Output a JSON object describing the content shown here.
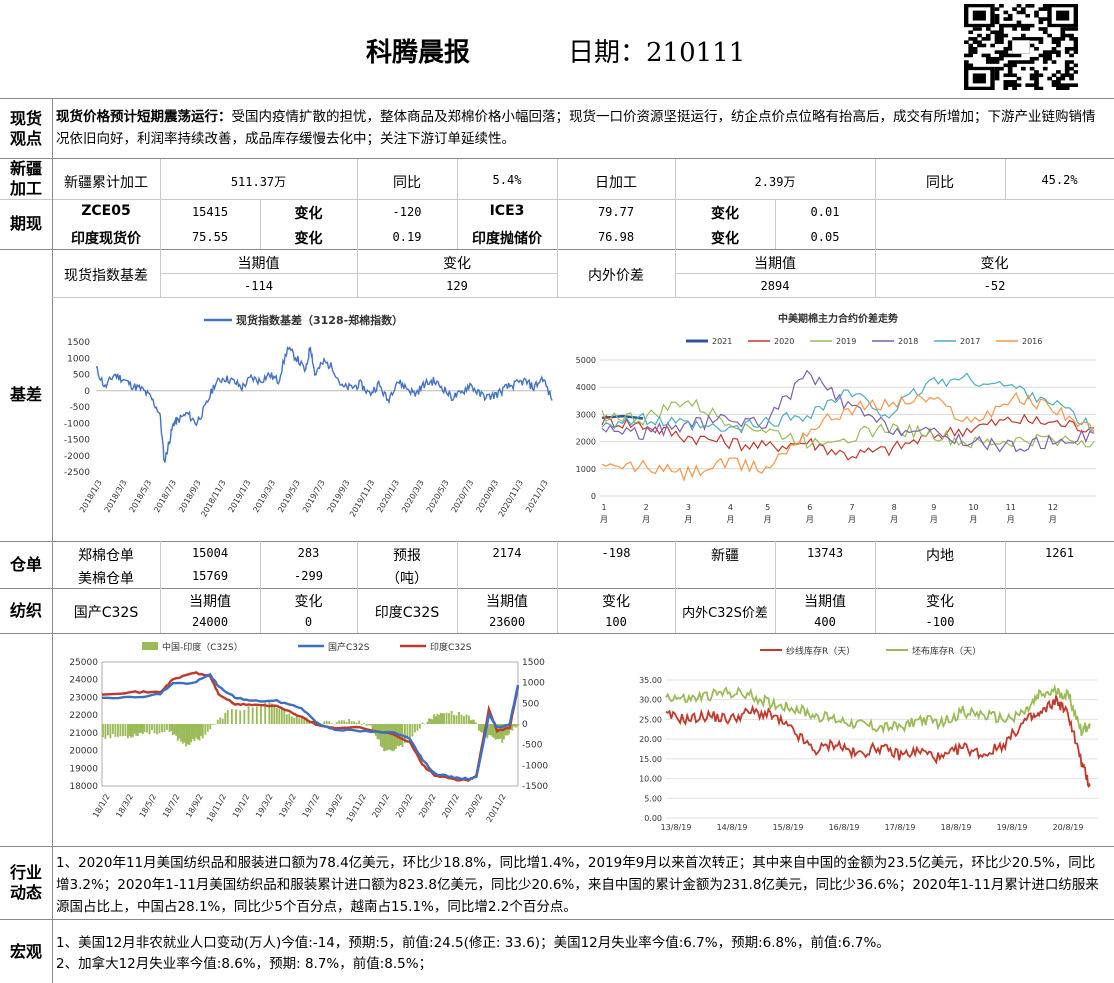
{
  "header": {
    "title": "科腾晨报",
    "date": "日期：210111"
  },
  "labels": {
    "spot": "现货观点",
    "xinjiang": "新疆加工",
    "futures": "期现",
    "basis": "基差",
    "warehouse": "仓单",
    "spinning": "纺织",
    "industry": "行业动态",
    "macro": "宏观"
  },
  "spot_view": {
    "lead": "现货价格预计短期震荡运行：",
    "body": "受国内疫情扩散的担忧，整体商品及郑棉价格小幅回落；现货一口价资源坚挺运行，纺企点价点位略有抬高后，成交有所增加；下游产业链购销情况依旧向好，利润率持续改善，成品库存缓慢去化中；关注下游订单延续性。"
  },
  "xinjiang": {
    "cum_label": "新疆累计加工",
    "cum_value": "511.37万",
    "yoy_label": "同比",
    "yoy_value": "5.4%",
    "daily_label": "日加工",
    "daily_value": "2.39万",
    "yoy2_label": "同比",
    "yoy2_value": "45.2%"
  },
  "futures": {
    "row1": {
      "k1": "ZCE05",
      "v1": "15415",
      "c1": "变化",
      "d1": "-120",
      "k2": "ICE3",
      "v2": "79.77",
      "c2": "变化",
      "d2": "0.01"
    },
    "row2": {
      "k1": "印度现货价",
      "v1": "75.55",
      "c1": "变化",
      "d1": "0.19",
      "k2": "印度抛储价",
      "v2": "76.98",
      "c2": "变化",
      "d2": "0.05"
    }
  },
  "basis": {
    "label1": "现货指数基差",
    "cur_label": "当期值",
    "chg_label": "变化",
    "cur1": "-114",
    "chg1": "129",
    "label2": "内外价差",
    "cur2": "2894",
    "chg2": "-52"
  },
  "warehouse": {
    "zc_label": "郑棉仓单",
    "zc_value": "15004",
    "zc_chg": "283",
    "us_label": "美棉仓单",
    "us_value": "15769",
    "us_chg": "-299",
    "fc_label": "预报",
    "fc_unit": "（吨）",
    "fc_value": "2174",
    "fc_chg": "-198",
    "xj_label": "新疆",
    "xj_value": "13743",
    "nd_label": "内地",
    "nd_value": "1261"
  },
  "spinning": {
    "cn_label": "国产C32S",
    "cur_label": "当期值",
    "chg_label": "变化",
    "cn_value": "24000",
    "cn_chg": "0",
    "in_label": "印度C32S",
    "in_value": "23600",
    "in_chg": "100",
    "diff_label": "内外C32S价差",
    "diff_value": "400",
    "diff_chg": "-100"
  },
  "industry_text": "1、2020年11月美国纺织品和服装进口额为78.4亿美元，环比少18.8%，同比增1.4%，2019年9月以来首次转正；其中来自中国的金额为23.5亿美元，环比少20.5%，同比增3.2%；2020年1-11月美国纺织品和服装累计进口额为823.8亿美元，同比少20.6%，来自中国的累计金额为231.8亿美元，同比少36.6%；2020年1-11月累计进口纺服来源国占比上，中国占28.1%，同比少5个百分点，越南占15.1%，同比增2.2个百分点。",
  "macro_lines": [
    "1、美国12月非农就业人口变动(万人)今值:-14，预期:5，前值:24.5(修正: 33.6)；美国12月失业率今值:6.7%，预期:6.8%，前值:6.7%。",
    "2、加拿大12月失业率今值:8.6%，预期: 8.7%，前值:8.5%；"
  ],
  "chart_data": [
    {
      "type": "line",
      "title": "",
      "legend": [
        "现货指数基差（3128-郑棉指数）"
      ],
      "ylim": [
        -2500,
        1500
      ],
      "yticks": [
        1500,
        1000,
        500,
        0,
        -500,
        -1000,
        -1500,
        -2000,
        -2500
      ],
      "xticks": [
        "2018/1/3",
        "2018/3/3",
        "2018/5/3",
        "2018/7/3",
        "2018/9/3",
        "2018/11/3",
        "2019/1/3",
        "2019/3/3",
        "2019/5/3",
        "2019/7/3",
        "2019/9/3",
        "2019/11/3",
        "2020/1/3",
        "2020/3/3",
        "2020/5/3",
        "2020/7/3",
        "2020/9/3",
        "2020/11/3",
        "2021/1/3"
      ],
      "series": [
        {
          "name": "现货指数基差（3128-郑棉指数）",
          "color": "#4472c4",
          "x": [
            0,
            0.02,
            0.04,
            0.06,
            0.08,
            0.1,
            0.12,
            0.14,
            0.15,
            0.16,
            0.17,
            0.18,
            0.2,
            0.22,
            0.24,
            0.26,
            0.28,
            0.3,
            0.32,
            0.34,
            0.36,
            0.38,
            0.4,
            0.42,
            0.44,
            0.46,
            0.47,
            0.48,
            0.5,
            0.52,
            0.54,
            0.56,
            0.58,
            0.6,
            0.62,
            0.64,
            0.66,
            0.68,
            0.7,
            0.72,
            0.74,
            0.76,
            0.78,
            0.8,
            0.82,
            0.84,
            0.86,
            0.88,
            0.9,
            0.92,
            0.94,
            0.96,
            0.98,
            1.0
          ],
          "y": [
            700,
            100,
            500,
            350,
            150,
            50,
            -200,
            -700,
            -2200,
            -1600,
            -1000,
            -900,
            -700,
            -1000,
            -500,
            200,
            400,
            300,
            100,
            400,
            300,
            500,
            300,
            1300,
            1000,
            600,
            1400,
            500,
            900,
            700,
            100,
            100,
            200,
            -100,
            200,
            -300,
            300,
            100,
            -100,
            200,
            300,
            100,
            -200,
            -100,
            200,
            -100,
            -200,
            -100,
            100,
            200,
            300,
            100,
            400,
            -300
          ]
        }
      ]
    },
    {
      "type": "line",
      "title": "中美期棉主力合约价差走势",
      "ylim": [
        0,
        5000
      ],
      "yticks": [
        5000,
        4000,
        3000,
        2000,
        1000,
        0
      ],
      "xticks": [
        "1月",
        "2月",
        "3月",
        "4月",
        "5月",
        "6月",
        "7月",
        "8月",
        "9月",
        "10月",
        "11月",
        "12月"
      ],
      "series": [
        {
          "name": "2021",
          "color": "#2e5597",
          "y": [
            2900,
            2850
          ]
        },
        {
          "name": "2020",
          "color": "#c0392b",
          "y": [
            2800,
            2600,
            2200,
            2000,
            1800,
            2000,
            1500,
            1700,
            2200,
            2500,
            2800,
            2700,
            2500
          ]
        },
        {
          "name": "2019",
          "color": "#9bbb59",
          "y": [
            3000,
            2800,
            3500,
            2800,
            2400,
            2000,
            2200,
            2500,
            2300,
            1900,
            2000,
            2100,
            2000
          ]
        },
        {
          "name": "2018",
          "color": "#7f5fae",
          "y": [
            2500,
            2300,
            2600,
            2800,
            2700,
            4500,
            3300,
            2500,
            2300,
            2000,
            1800,
            2000,
            2300
          ]
        },
        {
          "name": "2017",
          "color": "#4bacc6",
          "y": [
            2700,
            2800,
            2600,
            2400,
            2700,
            3000,
            3800,
            3000,
            4200,
            4300,
            4000,
            3500,
            2400
          ]
        },
        {
          "name": "2016",
          "color": "#f79646",
          "y": [
            1000,
            1100,
            800,
            1200,
            1000,
            2400,
            3200,
            3400,
            3600,
            2700,
            3600,
            3300,
            2300
          ]
        }
      ]
    },
    {
      "type": "line",
      "title": "",
      "legend": [
        "中国-印度（C32S）",
        "国产C32S",
        "印度C32S"
      ],
      "ylim": [
        18000,
        25000
      ],
      "y2lim": [
        -1500,
        1500
      ],
      "yticks": [
        25000,
        24000,
        23000,
        22000,
        21000,
        20000,
        19000,
        18000
      ],
      "y2ticks": [
        1500,
        1000,
        500,
        0,
        -500,
        -1000,
        -1500
      ],
      "xticks": [
        "18/1/2",
        "18/3/2",
        "18/5/2",
        "18/7/2",
        "18/9/2",
        "18/11/2",
        "19/1/2",
        "19/3/2",
        "19/5/2",
        "19/7/2",
        "19/9/2",
        "19/11/2",
        "20/1/2",
        "20/3/2",
        "20/5/2",
        "20/7/2",
        "20/9/2",
        "20/11/2"
      ],
      "series": [
        {
          "name": "国产C32S",
          "color": "#3a6fc4",
          "x": [
            0,
            0.08,
            0.14,
            0.17,
            0.22,
            0.26,
            0.28,
            0.32,
            0.36,
            0.42,
            0.48,
            0.52,
            0.56,
            0.62,
            0.7,
            0.74,
            0.77,
            0.8,
            0.84,
            0.88,
            0.9,
            0.93,
            0.95,
            0.98,
            1.0
          ],
          "y": [
            23000,
            23000,
            23200,
            23800,
            23800,
            24300,
            23600,
            23000,
            22800,
            22800,
            22400,
            21500,
            21200,
            21100,
            21000,
            20700,
            19500,
            18700,
            18500,
            18400,
            18500,
            22000,
            21300,
            21500,
            23700
          ]
        },
        {
          "name": "印度C32S",
          "color": "#c0392b",
          "x": [
            0,
            0.08,
            0.14,
            0.17,
            0.22,
            0.26,
            0.28,
            0.32,
            0.36,
            0.42,
            0.48,
            0.52,
            0.56,
            0.62,
            0.7,
            0.74,
            0.77,
            0.8,
            0.84,
            0.88,
            0.9,
            0.93,
            0.95,
            0.98,
            1.0
          ],
          "y": [
            23200,
            23300,
            23300,
            24000,
            24400,
            24200,
            23200,
            22600,
            22600,
            22500,
            21900,
            21400,
            21300,
            21300,
            20900,
            20500,
            19200,
            18600,
            18400,
            18300,
            18600,
            22300,
            21100,
            21300,
            23600
          ]
        },
        {
          "name": "中国-印度（C32S）",
          "color": "#9bbb59",
          "x": [
            0,
            0.06,
            0.1,
            0.16,
            0.2,
            0.24,
            0.3,
            0.4,
            0.46,
            0.52,
            0.58,
            0.64,
            0.68,
            0.72,
            0.78,
            0.82,
            0.88,
            0.92,
            0.96,
            1.0
          ],
          "y": [
            -300,
            -300,
            -200,
            -200,
            -500,
            -300,
            300,
            500,
            200,
            0,
            100,
            0,
            -700,
            -500,
            100,
            300,
            200,
            -300,
            -400,
            0
          ]
        }
      ]
    },
    {
      "type": "line",
      "title": "",
      "legend": [
        "纱线库存R（天）",
        "坯布库存R（天）"
      ],
      "ylim": [
        0,
        35
      ],
      "yticks": [
        "35.00",
        "30.00",
        "25.00",
        "20.00",
        "15.00",
        "10.00",
        "5.00",
        "0.00"
      ],
      "xticks": [
        "13/8/19",
        "14/8/19",
        "15/8/19",
        "16/8/19",
        "17/8/19",
        "18/8/19",
        "19/8/19",
        "20/8/19"
      ],
      "series": [
        {
          "name": "纱线库存R（天）",
          "color": "#c0392b",
          "x": [
            0,
            0.05,
            0.1,
            0.15,
            0.2,
            0.25,
            0.3,
            0.35,
            0.4,
            0.45,
            0.5,
            0.55,
            0.6,
            0.65,
            0.7,
            0.75,
            0.8,
            0.85,
            0.88,
            0.92,
            0.95,
            0.98,
            1.0
          ],
          "y": [
            26,
            25,
            26,
            25,
            27,
            26,
            22,
            17,
            19,
            16,
            18,
            16,
            17,
            15,
            18,
            16,
            19,
            25,
            26,
            30,
            26,
            14,
            8
          ]
        },
        {
          "name": "坯布库存R（天）",
          "color": "#9bbb59",
          "x": [
            0,
            0.05,
            0.1,
            0.15,
            0.2,
            0.25,
            0.3,
            0.35,
            0.4,
            0.45,
            0.5,
            0.55,
            0.6,
            0.65,
            0.7,
            0.75,
            0.8,
            0.85,
            0.88,
            0.92,
            0.95,
            0.98,
            1.0
          ],
          "y": [
            31,
            30,
            31,
            32,
            31,
            29,
            28,
            26,
            25,
            24,
            23,
            23,
            25,
            24,
            27,
            26,
            25,
            27,
            31,
            32,
            31,
            22,
            24
          ]
        }
      ]
    }
  ]
}
